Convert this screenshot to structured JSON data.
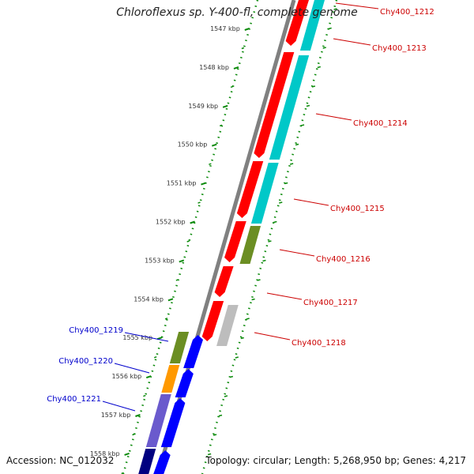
{
  "title": "Chloroflexus sp. Y-400-fl, complete genome",
  "accession": "Accession: NC_012032",
  "summary": "Topology: circular; Length: 5,268,950 bp; Genes: 4,217",
  "ruler": [
    "1547 kbp",
    "1548 kbp",
    "1549 kbp",
    "1550 kbp",
    "1551 kbp",
    "1552 kbp",
    "1553 kbp",
    "1554 kbp",
    "1555 kbp",
    "1556 kbp",
    "1557 kbp",
    "1558 kbp"
  ],
  "right_labels": [
    "Chy400_1212",
    "Chy400_1213",
    "Chy400_1214",
    "Chy400_1215",
    "Chy400_1216",
    "Chy400_1217",
    "Chy400_1218"
  ],
  "left_labels": [
    "Chy400_1219",
    "Chy400_1220",
    "Chy400_1221"
  ],
  "colors": {
    "forward_cds": "#ff0000",
    "reverse_cds": "#0000ff",
    "cog_cyan": "#00c8c8",
    "cog_olive": "#6b8e23",
    "cog_orange": "#ff9900",
    "cog_gray": "#bdbdbd",
    "cog_navy": "#000080",
    "cog_slate": "#6a5acd",
    "backbone": "#808080",
    "ruler": "#0b8a0b",
    "right_label": "#cc0000",
    "left_label": "#0000cc"
  }
}
